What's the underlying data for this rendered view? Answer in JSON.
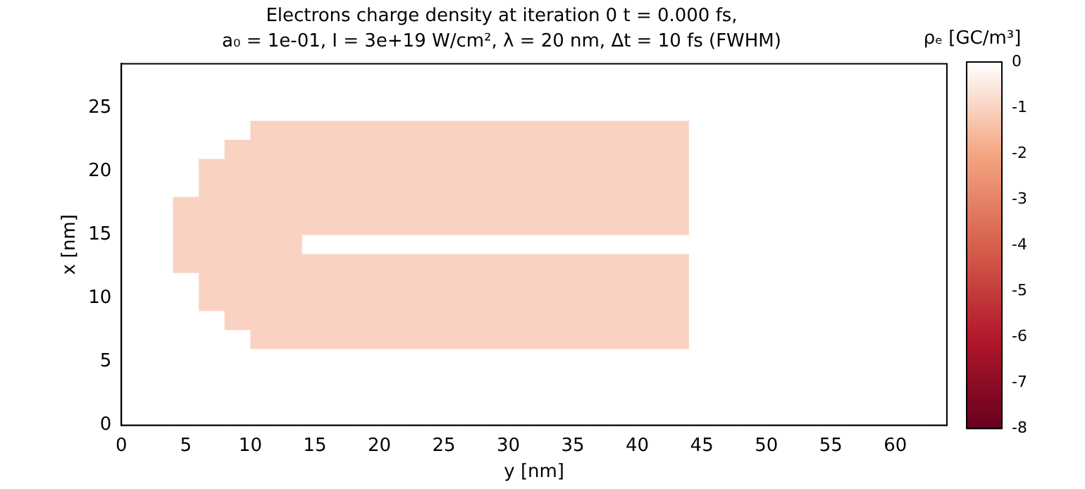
{
  "chart_data": {
    "type": "heatmap",
    "title": "Electrons charge density at iteration 0 t = 0.000 fs,",
    "subtitle": "a₀ = 1e-01, I = 3e+19 W/cm², λ = 20 nm, Δt = 10 fs (FWHM)",
    "xlabel": "y [nm]",
    "ylabel": "x [nm]",
    "clabel": "ρₑ [GC/m³]",
    "xlim": [
      0,
      64
    ],
    "ylim": [
      0,
      28.5
    ],
    "xticks": [
      0,
      5,
      10,
      15,
      20,
      25,
      30,
      35,
      40,
      45,
      50,
      55,
      60
    ],
    "yticks": [
      0,
      5,
      10,
      15,
      20,
      25
    ],
    "clim": [
      -8,
      0
    ],
    "cticks": [
      -8,
      -7,
      -6,
      -5,
      -4,
      -3,
      -2,
      -1,
      0
    ],
    "grid": false,
    "cells": [
      [
        0,
        0,
        0,
        0,
        0,
        0,
        0,
        0,
        0,
        0,
        0,
        0,
        0,
        0,
        0,
        0,
        0,
        0,
        0,
        0,
        0,
        0,
        0,
        0,
        0,
        0,
        0,
        0,
        0,
        0,
        0,
        0
      ],
      [
        0,
        0,
        0,
        0,
        0,
        0,
        0,
        0,
        0,
        0,
        0,
        0,
        0,
        0,
        0,
        0,
        0,
        0,
        0,
        0,
        0,
        0,
        0,
        0,
        0,
        0,
        0,
        0,
        0,
        0,
        0,
        0
      ],
      [
        0,
        0,
        0,
        0,
        0,
        0,
        0,
        0,
        0,
        0,
        0,
        0,
        0,
        0,
        0,
        0,
        0,
        0,
        0,
        0,
        0,
        0,
        0,
        0,
        0,
        0,
        0,
        0,
        0,
        0,
        0,
        0
      ],
      [
        0,
        0,
        0,
        0,
        0,
        -1,
        -1,
        -1,
        -1,
        -1,
        -1,
        -1,
        -1,
        -1,
        -1,
        -1,
        -1,
        -1,
        -1,
        -1,
        -1,
        -1,
        0,
        0,
        0,
        0,
        0,
        0,
        0,
        0,
        0,
        0
      ],
      [
        0,
        0,
        0,
        0,
        -1,
        -1,
        -1,
        -1,
        -1,
        -1,
        -1,
        -1,
        -1,
        -1,
        -1,
        -1,
        -1,
        -1,
        -1,
        -1,
        -1,
        -1,
        0,
        0,
        0,
        0,
        0,
        0,
        0,
        0,
        0,
        0
      ],
      [
        0,
        0,
        0,
        -1,
        -1,
        -1,
        -1,
        -1,
        -1,
        -1,
        -1,
        -1,
        -1,
        -1,
        -1,
        -1,
        -1,
        -1,
        -1,
        -1,
        -1,
        -1,
        0,
        0,
        0,
        0,
        0,
        0,
        0,
        0,
        0,
        0
      ],
      [
        0,
        0,
        0,
        -1,
        -1,
        -1,
        -1,
        -1,
        -1,
        -1,
        -1,
        -1,
        -1,
        -1,
        -1,
        -1,
        -1,
        -1,
        -1,
        -1,
        -1,
        -1,
        0,
        0,
        0,
        0,
        0,
        0,
        0,
        0,
        0,
        0
      ],
      [
        0,
        0,
        -1,
        -1,
        -1,
        -1,
        -1,
        -1,
        -1,
        -1,
        -1,
        -1,
        -1,
        -1,
        -1,
        -1,
        -1,
        -1,
        -1,
        -1,
        -1,
        -1,
        0,
        0,
        0,
        0,
        0,
        0,
        0,
        0,
        0,
        0
      ],
      [
        0,
        0,
        -1,
        -1,
        -1,
        -1,
        -1,
        -1,
        -1,
        -1,
        -1,
        -1,
        -1,
        -1,
        -1,
        -1,
        -1,
        -1,
        -1,
        -1,
        -1,
        -1,
        0,
        0,
        0,
        0,
        0,
        0,
        0,
        0,
        0,
        0
      ],
      [
        0,
        0,
        -1,
        -1,
        -1,
        -1,
        -1,
        0,
        0,
        0,
        0,
        0,
        0,
        0,
        0,
        0,
        0,
        0,
        0,
        0,
        0,
        0,
        0,
        0,
        0,
        0,
        0,
        0,
        0,
        0,
        0,
        0
      ],
      [
        0,
        0,
        -1,
        -1,
        -1,
        -1,
        -1,
        -1,
        -1,
        -1,
        -1,
        -1,
        -1,
        -1,
        -1,
        -1,
        -1,
        -1,
        -1,
        -1,
        -1,
        -1,
        0,
        0,
        0,
        0,
        0,
        0,
        0,
        0,
        0,
        0
      ],
      [
        0,
        0,
        0,
        -1,
        -1,
        -1,
        -1,
        -1,
        -1,
        -1,
        -1,
        -1,
        -1,
        -1,
        -1,
        -1,
        -1,
        -1,
        -1,
        -1,
        -1,
        -1,
        0,
        0,
        0,
        0,
        0,
        0,
        0,
        0,
        0,
        0
      ],
      [
        0,
        0,
        0,
        -1,
        -1,
        -1,
        -1,
        -1,
        -1,
        -1,
        -1,
        -1,
        -1,
        -1,
        -1,
        -1,
        -1,
        -1,
        -1,
        -1,
        -1,
        -1,
        0,
        0,
        0,
        0,
        0,
        0,
        0,
        0,
        0,
        0
      ],
      [
        0,
        0,
        0,
        0,
        -1,
        -1,
        -1,
        -1,
        -1,
        -1,
        -1,
        -1,
        -1,
        -1,
        -1,
        -1,
        -1,
        -1,
        -1,
        -1,
        -1,
        -1,
        0,
        0,
        0,
        0,
        0,
        0,
        0,
        0,
        0,
        0
      ],
      [
        0,
        0,
        0,
        0,
        0,
        -1,
        -1,
        -1,
        -1,
        -1,
        -1,
        -1,
        -1,
        -1,
        -1,
        -1,
        -1,
        -1,
        -1,
        -1,
        -1,
        -1,
        0,
        0,
        0,
        0,
        0,
        0,
        0,
        0,
        0,
        0
      ],
      [
        0,
        0,
        0,
        0,
        0,
        0,
        0,
        0,
        0,
        0,
        0,
        0,
        0,
        0,
        0,
        0,
        0,
        0,
        0,
        0,
        0,
        0,
        0,
        0,
        0,
        0,
        0,
        0,
        0,
        0,
        0,
        0
      ],
      [
        0,
        0,
        0,
        0,
        0,
        0,
        0,
        0,
        0,
        0,
        0,
        0,
        0,
        0,
        0,
        0,
        0,
        0,
        0,
        0,
        0,
        0,
        0,
        0,
        0,
        0,
        0,
        0,
        0,
        0,
        0,
        0
      ],
      [
        0,
        0,
        0,
        0,
        0,
        0,
        0,
        0,
        0,
        0,
        0,
        0,
        0,
        0,
        0,
        0,
        0,
        0,
        0,
        0,
        0,
        0,
        0,
        0,
        0,
        0,
        0,
        0,
        0,
        0,
        0,
        0
      ],
      [
        0,
        0,
        0,
        0,
        0,
        0,
        0,
        0,
        0,
        0,
        0,
        0,
        0,
        0,
        0,
        0,
        0,
        0,
        0,
        0,
        0,
        0,
        0,
        0,
        0,
        0,
        0,
        0,
        0,
        0,
        0,
        0
      ]
    ]
  }
}
